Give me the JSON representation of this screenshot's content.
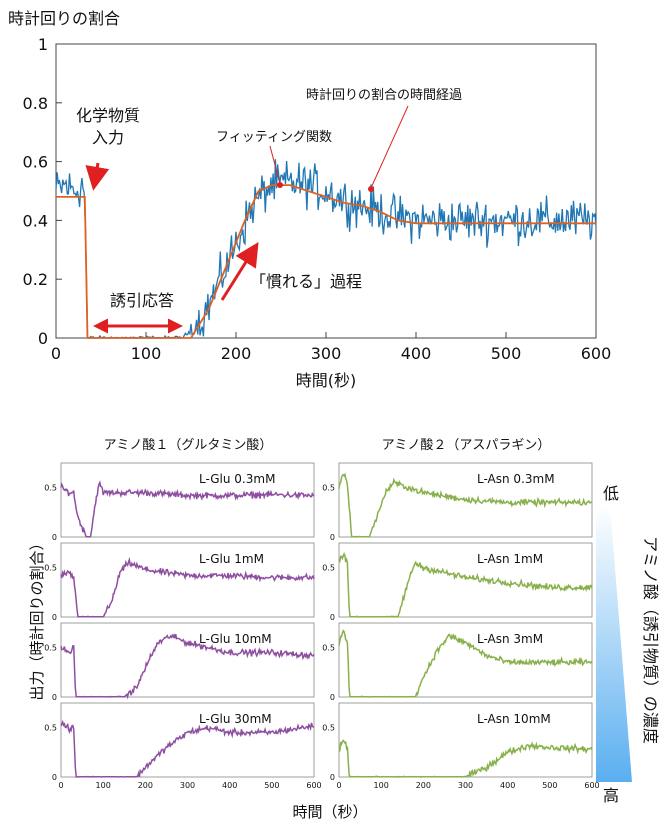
{
  "colors": {
    "noisy": "#1f77b4",
    "fit": "#e06020",
    "arrow": "#e02020",
    "purple": "#8e4fa0",
    "green": "#88b04b",
    "wedge_top": "#ffffff",
    "wedge_bottom": "#5aaff0"
  },
  "top_chart": {
    "ylabel": "時計回りの割合",
    "xlabel": "時間(秒)",
    "yticks": [
      "0",
      "0.2",
      "0.4",
      "0.6",
      "0.8",
      "1"
    ],
    "xticks": [
      "0",
      "100",
      "200",
      "300",
      "400",
      "500",
      "600"
    ],
    "annotations": {
      "stimulus_line1": "化学物質",
      "stimulus_line2": "入力",
      "response": "誘引応答",
      "adaptation": "「慣れる」過程",
      "fit_function": "フィッティング関数",
      "time_course": "時計回りの割合の時間経過"
    }
  },
  "bottom_panels": {
    "left_title": "アミノ酸１（グルタミン酸）",
    "right_title": "アミノ酸２（アスパラギン）",
    "ylabel": "出力（時計回りの割合）",
    "xlabel": "時間（秒）",
    "side_label": "アミノ酸（誘引物質）の濃度",
    "low_label": "低",
    "high_label": "高",
    "yticks": [
      "0",
      "0.5"
    ],
    "xticks": [
      "0",
      "100",
      "200",
      "300",
      "400",
      "500",
      "600"
    ],
    "glu_labels": [
      "L-Glu  0.3mM",
      "L-Glu  1mM",
      "L-Glu  10mM",
      "L-Glu  30mM"
    ],
    "asn_labels": [
      "L-Asn  0.3mM",
      "L-Asn  1mM",
      "L-Asn  3mM",
      "L-Asn  10mM"
    ]
  },
  "chart_data": [
    {
      "type": "line",
      "xlabel": "時間(秒)",
      "ylabel": "時計回りの割合",
      "xlim": [
        0,
        600
      ],
      "ylim": [
        0,
        1
      ],
      "grid": false,
      "series": [
        {
          "name": "時計回りの割合の時間経過",
          "x": [
            0,
            10,
            20,
            30,
            32,
            35,
            40,
            60,
            100,
            140,
            160,
            180,
            200,
            220,
            240,
            260,
            280,
            300,
            320,
            340,
            360,
            380,
            400,
            450,
            500,
            550,
            600
          ],
          "y": [
            0.5,
            0.52,
            0.5,
            0.52,
            0.48,
            0.0,
            0.0,
            0.0,
            0.0,
            0.0,
            0.05,
            0.18,
            0.32,
            0.46,
            0.52,
            0.53,
            0.52,
            0.5,
            0.47,
            0.45,
            0.43,
            0.41,
            0.4,
            0.4,
            0.4,
            0.4,
            0.4
          ]
        },
        {
          "name": "フィッティング関数",
          "x": [
            0,
            32,
            35,
            150,
            170,
            190,
            210,
            225,
            240,
            260,
            280,
            300,
            320,
            340,
            360,
            380,
            400,
            600
          ],
          "y": [
            0.48,
            0.48,
            0.0,
            0.0,
            0.1,
            0.25,
            0.4,
            0.5,
            0.52,
            0.52,
            0.5,
            0.48,
            0.46,
            0.45,
            0.43,
            0.4,
            0.39,
            0.39
          ]
        }
      ]
    },
    {
      "type": "line",
      "title": "アミノ酸１（グルタミン酸）",
      "xlabel": "時間（秒）",
      "ylabel": "出力（時計回りの割合）",
      "xlim": [
        0,
        600
      ],
      "ylim": [
        0,
        0.75
      ],
      "series": [
        {
          "name": "L-Glu  0.3mM",
          "x": [
            0,
            20,
            30,
            40,
            60,
            70,
            80,
            90,
            100,
            150,
            200,
            300,
            400,
            500,
            600
          ],
          "y": [
            0.5,
            0.45,
            0.45,
            0.2,
            0.0,
            0.0,
            0.3,
            0.55,
            0.45,
            0.45,
            0.45,
            0.42,
            0.42,
            0.43,
            0.42
          ]
        },
        {
          "name": "L-Glu  1mM",
          "x": [
            0,
            20,
            30,
            40,
            60,
            80,
            100,
            120,
            140,
            160,
            200,
            300,
            400,
            500,
            600
          ],
          "y": [
            0.42,
            0.45,
            0.4,
            0.0,
            0.0,
            0.0,
            0.0,
            0.15,
            0.45,
            0.55,
            0.48,
            0.42,
            0.42,
            0.4,
            0.4
          ]
        },
        {
          "name": "L-Glu  10mM",
          "x": [
            0,
            20,
            30,
            35,
            60,
            100,
            150,
            180,
            200,
            230,
            260,
            300,
            350,
            400,
            500,
            600
          ],
          "y": [
            0.5,
            0.45,
            0.5,
            0.0,
            0.0,
            0.0,
            0.0,
            0.1,
            0.3,
            0.55,
            0.62,
            0.55,
            0.5,
            0.45,
            0.45,
            0.42
          ]
        },
        {
          "name": "L-Glu  30mM",
          "x": [
            0,
            20,
            30,
            35,
            60,
            100,
            150,
            180,
            200,
            250,
            300,
            350,
            400,
            500,
            600
          ],
          "y": [
            0.55,
            0.48,
            0.5,
            0.0,
            0.0,
            0.0,
            0.0,
            0.0,
            0.1,
            0.3,
            0.45,
            0.5,
            0.45,
            0.45,
            0.52
          ]
        }
      ]
    },
    {
      "type": "line",
      "title": "アミノ酸２（アスパラギン）",
      "xlabel": "時間（秒）",
      "ylabel": "出力（時計回りの割合）",
      "xlim": [
        0,
        600
      ],
      "ylim": [
        0,
        0.75
      ],
      "series": [
        {
          "name": "L-Asn  0.3mM",
          "x": [
            0,
            10,
            20,
            30,
            40,
            60,
            70,
            90,
            110,
            130,
            200,
            300,
            400,
            500,
            600
          ],
          "y": [
            0.5,
            0.65,
            0.55,
            0.0,
            0.0,
            0.0,
            0.0,
            0.2,
            0.45,
            0.55,
            0.45,
            0.38,
            0.35,
            0.35,
            0.35
          ]
        },
        {
          "name": "L-Asn  1mM",
          "x": [
            0,
            10,
            20,
            25,
            40,
            60,
            100,
            140,
            160,
            180,
            200,
            300,
            400,
            500,
            600
          ],
          "y": [
            0.55,
            0.65,
            0.55,
            0.0,
            0.0,
            0.0,
            0.0,
            0.0,
            0.3,
            0.55,
            0.5,
            0.4,
            0.35,
            0.3,
            0.3
          ]
        },
        {
          "name": "L-Asn  3mM",
          "x": [
            0,
            10,
            20,
            25,
            40,
            100,
            180,
            200,
            230,
            260,
            300,
            350,
            400,
            500,
            600
          ],
          "y": [
            0.55,
            0.68,
            0.55,
            0.0,
            0.0,
            0.0,
            0.0,
            0.2,
            0.45,
            0.62,
            0.55,
            0.42,
            0.35,
            0.35,
            0.35
          ]
        },
        {
          "name": "L-Asn  10mM",
          "x": [
            0,
            10,
            20,
            25,
            40,
            100,
            200,
            300,
            350,
            400,
            450,
            500,
            600
          ],
          "y": [
            0.28,
            0.38,
            0.28,
            0.0,
            0.0,
            0.0,
            0.0,
            0.0,
            0.1,
            0.25,
            0.32,
            0.3,
            0.28
          ]
        }
      ]
    }
  ]
}
